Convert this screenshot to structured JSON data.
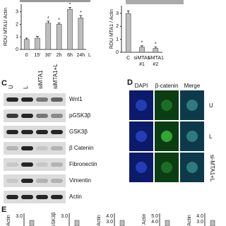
{
  "panel_a": {
    "y_label": "RDU MTA1/ Actin",
    "categories": [
      "0",
      "15'",
      "30'",
      "2h",
      "6h",
      "24h"
    ],
    "values": [
      0.8,
      0.9,
      2.1,
      2.0,
      3.2,
      2.5
    ],
    "errors": [
      0.1,
      0.15,
      0.15,
      0.1,
      0.15,
      0.2
    ],
    "significance": [
      null,
      null,
      "*",
      "*",
      "*",
      "*"
    ],
    "suffix_label": "L",
    "ylim": [
      0,
      3.6
    ],
    "yticks": [
      0,
      1,
      2,
      3
    ],
    "color": "#bdbdbd"
  },
  "panel_b": {
    "y_label": "RDU MTA1 / Actin",
    "categories": [
      "C",
      "siMTA1 #1",
      "siMTA1 #2"
    ],
    "values": [
      3.0,
      0.4,
      0.3
    ],
    "errors": [
      0.2,
      0.1,
      0.1
    ],
    "significance": [
      null,
      "*",
      "*"
    ],
    "ylim": [
      0,
      3.6
    ],
    "yticks": [
      0,
      1,
      2,
      3
    ],
    "color": "#bdbdbd"
  },
  "panel_c": {
    "label": "C",
    "columns": [
      "U",
      "L",
      "siMTA1",
      "siMTA1+L"
    ],
    "rows": [
      "Wnt1",
      "pGSK3β",
      "GSK3β",
      "β Catenin",
      "Fibronectin",
      "Vimentin",
      "Actin"
    ]
  },
  "panel_d": {
    "label": "D",
    "columns": [
      "DAPI",
      "β-catenin",
      "Merge"
    ],
    "rows": [
      "U",
      "L",
      "si-MTA1+L"
    ]
  },
  "panel_e": {
    "label": "E",
    "plots": [
      {
        "y_label": "Actin",
        "ticks": [
          "3.0"
        ]
      },
      {
        "y_label": "GSK3β",
        "ticks": [
          "3.0"
        ]
      },
      {
        "y_label": "Actin",
        "ticks": [
          "4.0",
          "3.0"
        ]
      },
      {
        "y_label": "/ Actin",
        "ticks": [
          "5.0",
          "4.0"
        ]
      },
      {
        "y_label": "Actin",
        "ticks": [
          "4.0",
          "3.0"
        ]
      }
    ]
  }
}
